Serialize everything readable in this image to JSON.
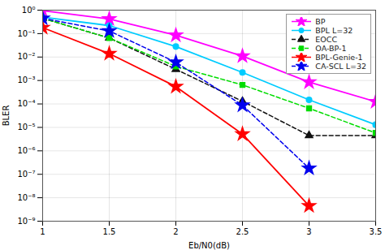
{
  "chart_data": {
    "type": "line",
    "xlabel": "Eb/N0(dB)",
    "ylabel": "BLER",
    "log": "y",
    "grid": true,
    "legend": "upper-right",
    "xlim": [
      1,
      3.5
    ],
    "xticks": [
      1,
      1.5,
      2,
      2.5,
      3,
      3.5
    ],
    "ylim": [
      1e-09,
      1
    ],
    "yticks": [
      {
        "value": 1e-09,
        "label": "10⁻⁹"
      },
      {
        "value": 1e-08,
        "label": "10⁻⁸"
      },
      {
        "value": 1e-07,
        "label": "10⁻⁷"
      },
      {
        "value": 1e-06,
        "label": "10⁻⁶"
      },
      {
        "value": 1e-05,
        "label": "10⁻⁵"
      },
      {
        "value": 0.0001,
        "label": "10⁻⁴"
      },
      {
        "value": 0.001,
        "label": "10⁻³"
      },
      {
        "value": 0.01,
        "label": "10⁻²"
      },
      {
        "value": 0.1,
        "label": "10⁻¹"
      },
      {
        "value": 1,
        "label": "10⁰"
      }
    ],
    "x": [
      1.0,
      1.5,
      2.0,
      2.5,
      3.0,
      3.5
    ],
    "series": [
      {
        "name": "BP",
        "color": "#ff00ff",
        "marker": "star",
        "line_style": "solid",
        "values": [
          0.95,
          0.42,
          0.085,
          0.011,
          0.00085,
          0.000125
        ]
      },
      {
        "name": "BPL L=32",
        "color": "#00ccff",
        "marker": "circle",
        "line_style": "solid",
        "values": [
          0.5,
          0.22,
          0.028,
          0.0022,
          0.00015,
          1.3e-05
        ]
      },
      {
        "name": "EOCC",
        "color": "#111111",
        "marker": "triangle",
        "line_style": "dashed",
        "values": [
          0.45,
          0.065,
          0.003,
          0.00013,
          4.5e-06,
          4.5e-06
        ]
      },
      {
        "name": "OA-BP-1",
        "color": "#00dd00",
        "marker": "square",
        "line_style": "dashed",
        "values": [
          0.45,
          0.065,
          0.004,
          0.00065,
          6.5e-05,
          5.8e-06
        ]
      },
      {
        "name": "BPL-Genie-1",
        "color": "#ff0000",
        "marker": "star",
        "line_style": "solid",
        "values": [
          0.18,
          0.014,
          0.00055,
          5.2e-06,
          4.5e-09,
          null
        ]
      },
      {
        "name": "CA-SCL L=32",
        "color": "#0000ee",
        "marker": "star",
        "line_style": "dashed",
        "values": [
          0.45,
          0.13,
          0.006,
          8.8e-05,
          1.8e-07,
          null
        ]
      }
    ]
  }
}
